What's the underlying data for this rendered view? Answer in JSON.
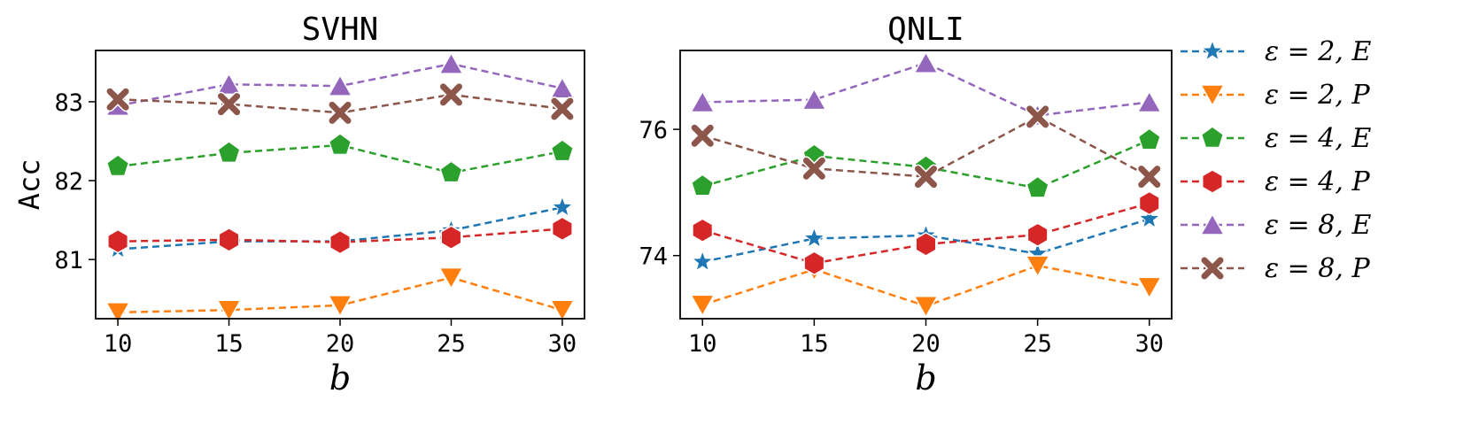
{
  "legend": {
    "entries": [
      {
        "label": "ε = 2, E",
        "color": "#1f77b4",
        "marker": "star"
      },
      {
        "label": "ε = 2, P",
        "color": "#ff7f0e",
        "marker": "triangle-down"
      },
      {
        "label": "ε = 4, E",
        "color": "#2ca02c",
        "marker": "pentagon"
      },
      {
        "label": "ε = 4, P",
        "color": "#d62728",
        "marker": "hexagon"
      },
      {
        "label": "ε = 8, E",
        "color": "#9467bd",
        "marker": "triangle-up"
      },
      {
        "label": "ε = 8, P",
        "color": "#8c564b",
        "marker": "x"
      }
    ],
    "placement": "right"
  },
  "chart_data": [
    {
      "type": "line",
      "title": "SVHN",
      "xlabel": "b",
      "ylabel": "Acc",
      "x": [
        10,
        15,
        20,
        25,
        30
      ],
      "xticks": [
        10,
        15,
        20,
        25,
        30
      ],
      "yticks": [
        81,
        82,
        83
      ],
      "xlim": [
        9,
        31
      ],
      "ylim": [
        80.25,
        83.65
      ],
      "grid": false,
      "series": [
        {
          "name": "ε = 2, E",
          "color": "#1f77b4",
          "marker": "star",
          "values": [
            81.13,
            81.23,
            81.23,
            81.37,
            81.66
          ]
        },
        {
          "name": "ε = 2, P",
          "color": "#ff7f0e",
          "marker": "triangle-down",
          "values": [
            80.33,
            80.36,
            80.42,
            80.77,
            80.36
          ]
        },
        {
          "name": "ε = 4, E",
          "color": "#2ca02c",
          "marker": "pentagon",
          "values": [
            82.18,
            82.35,
            82.45,
            82.1,
            82.37
          ]
        },
        {
          "name": "ε = 4, P",
          "color": "#d62728",
          "marker": "hexagon",
          "values": [
            81.23,
            81.25,
            81.22,
            81.28,
            81.39
          ]
        },
        {
          "name": "ε = 8, E",
          "color": "#9467bd",
          "marker": "triangle-up",
          "values": [
            82.95,
            83.22,
            83.2,
            83.48,
            83.17
          ]
        },
        {
          "name": "ε = 8, P",
          "color": "#8c564b",
          "marker": "x",
          "values": [
            83.03,
            82.97,
            82.86,
            83.09,
            82.91
          ]
        }
      ]
    },
    {
      "type": "line",
      "title": "QNLI",
      "xlabel": "b",
      "ylabel": "",
      "x": [
        10,
        15,
        20,
        25,
        30
      ],
      "xticks": [
        10,
        15,
        20,
        25,
        30
      ],
      "yticks": [
        74,
        76
      ],
      "xlim": [
        9,
        31
      ],
      "ylim": [
        73,
        77.25
      ],
      "grid": false,
      "series": [
        {
          "name": "ε = 2, E",
          "color": "#1f77b4",
          "marker": "star",
          "values": [
            73.9,
            74.27,
            74.32,
            74.03,
            74.58
          ]
        },
        {
          "name": "ε = 2, P",
          "color": "#ff7f0e",
          "marker": "triangle-down",
          "values": [
            73.22,
            73.78,
            73.2,
            73.84,
            73.5
          ]
        },
        {
          "name": "ε = 4, E",
          "color": "#2ca02c",
          "marker": "pentagon",
          "values": [
            75.1,
            75.58,
            75.4,
            75.07,
            75.83
          ]
        },
        {
          "name": "ε = 4, P",
          "color": "#d62728",
          "marker": "hexagon",
          "values": [
            74.4,
            73.88,
            74.18,
            74.33,
            74.83
          ]
        },
        {
          "name": "ε = 8, E",
          "color": "#9467bd",
          "marker": "triangle-up",
          "values": [
            76.43,
            76.47,
            77.05,
            76.22,
            76.43
          ]
        },
        {
          "name": "ε = 8, P",
          "color": "#8c564b",
          "marker": "x",
          "values": [
            75.9,
            75.38,
            75.25,
            76.2,
            75.25
          ]
        }
      ]
    }
  ]
}
